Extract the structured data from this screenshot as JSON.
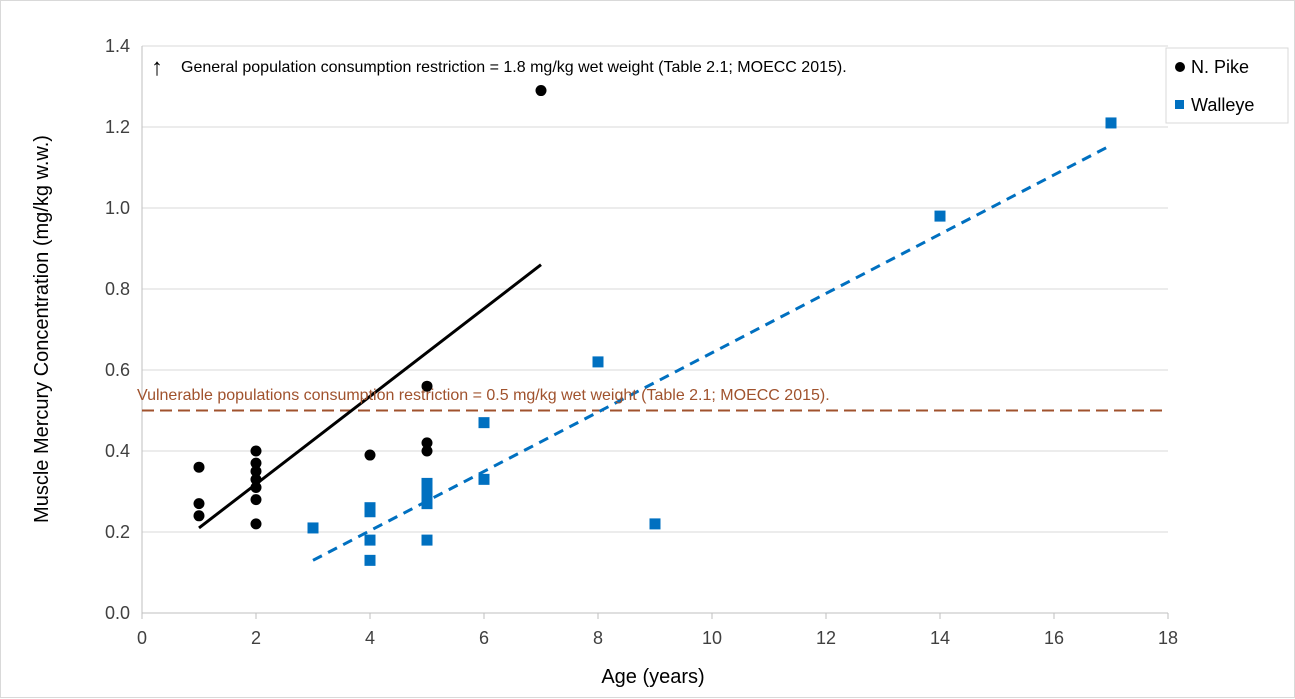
{
  "colors": {
    "pike": "#000000",
    "walleye": "#0070c0",
    "threshold": "#a0522d",
    "grid": "#d9d9d9",
    "tick_text": "#404040"
  },
  "chart_data": {
    "type": "scatter",
    "xlabel": "Age (years)",
    "ylabel": "Muscle Mercury Concentration (mg/kg w.w.)",
    "xlim": [
      0,
      18
    ],
    "ylim": [
      0,
      1.4
    ],
    "x_ticks": [
      "0",
      "2",
      "4",
      "6",
      "8",
      "10",
      "12",
      "14",
      "16",
      "18"
    ],
    "y_ticks": [
      "0.0",
      "0.2",
      "0.4",
      "0.6",
      "0.8",
      "1.0",
      "1.2",
      "1.4"
    ],
    "grid": "horizontal",
    "legend_position": "top-right",
    "series": [
      {
        "name": "N. Pike",
        "marker": "circle",
        "color": "#000000",
        "points": [
          [
            1,
            0.36
          ],
          [
            1,
            0.27
          ],
          [
            1,
            0.24
          ],
          [
            2,
            0.4
          ],
          [
            2,
            0.37
          ],
          [
            2,
            0.35
          ],
          [
            2,
            0.33
          ],
          [
            2,
            0.31
          ],
          [
            2,
            0.28
          ],
          [
            2,
            0.22
          ],
          [
            4,
            0.39
          ],
          [
            5,
            0.56
          ],
          [
            5,
            0.42
          ],
          [
            5,
            0.4
          ],
          [
            7,
            1.29
          ]
        ],
        "trendline": {
          "style": "solid",
          "x": [
            1,
            7
          ],
          "y": [
            0.21,
            0.86
          ]
        }
      },
      {
        "name": "Walleye",
        "marker": "square",
        "color": "#0070c0",
        "points": [
          [
            3,
            0.21
          ],
          [
            4,
            0.26
          ],
          [
            4,
            0.25
          ],
          [
            4,
            0.18
          ],
          [
            4,
            0.13
          ],
          [
            5,
            0.32
          ],
          [
            5,
            0.3
          ],
          [
            5,
            0.28
          ],
          [
            5,
            0.27
          ],
          [
            5,
            0.18
          ],
          [
            6,
            0.47
          ],
          [
            6,
            0.33
          ],
          [
            8,
            0.62
          ],
          [
            9,
            0.22
          ],
          [
            14,
            0.98
          ],
          [
            17,
            1.21
          ]
        ],
        "trendline": {
          "style": "dashed",
          "x": [
            3,
            17
          ],
          "y": [
            0.13,
            1.155
          ]
        }
      }
    ],
    "reference_lines": [
      {
        "y": 0.5,
        "style": "dashed",
        "color": "#a0522d",
        "label": "Vulnerable populations consumption restriction = 0.5 mg/kg wet weight (Table 2.1; MOECC 2015)."
      }
    ],
    "annotations": [
      {
        "arrow": "↑",
        "text": "General population consumption restriction = 1.8 mg/kg wet weight (Table 2.1; MOECC 2015)."
      }
    ]
  }
}
